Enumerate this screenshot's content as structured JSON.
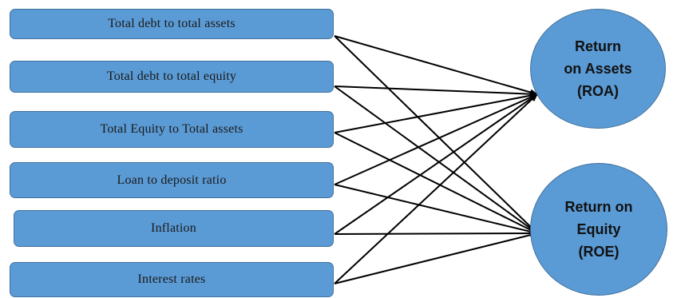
{
  "diagram": {
    "inputs": [
      {
        "label": "Total debt to total assets"
      },
      {
        "label": "Total debt to total equity"
      },
      {
        "label": "Total Equity to Total assets"
      },
      {
        "label": "Loan to deposit ratio"
      },
      {
        "label": "Inflation"
      },
      {
        "label": "Interest rates"
      }
    ],
    "outputs": [
      {
        "lines": [
          "Return",
          "on Assets",
          "(ROA)"
        ]
      },
      {
        "lines": [
          "Return on",
          "Equity",
          "(ROE)"
        ]
      }
    ],
    "edges": [
      [
        0,
        0
      ],
      [
        0,
        1
      ],
      [
        1,
        0
      ],
      [
        1,
        1
      ],
      [
        2,
        0
      ],
      [
        2,
        1
      ],
      [
        3,
        0
      ],
      [
        3,
        1
      ],
      [
        4,
        0
      ],
      [
        4,
        1
      ],
      [
        5,
        0
      ],
      [
        5,
        1
      ]
    ],
    "colors": {
      "node_fill": "#5b9bd5",
      "node_border": "#41719c",
      "arrow": "#000000"
    }
  }
}
